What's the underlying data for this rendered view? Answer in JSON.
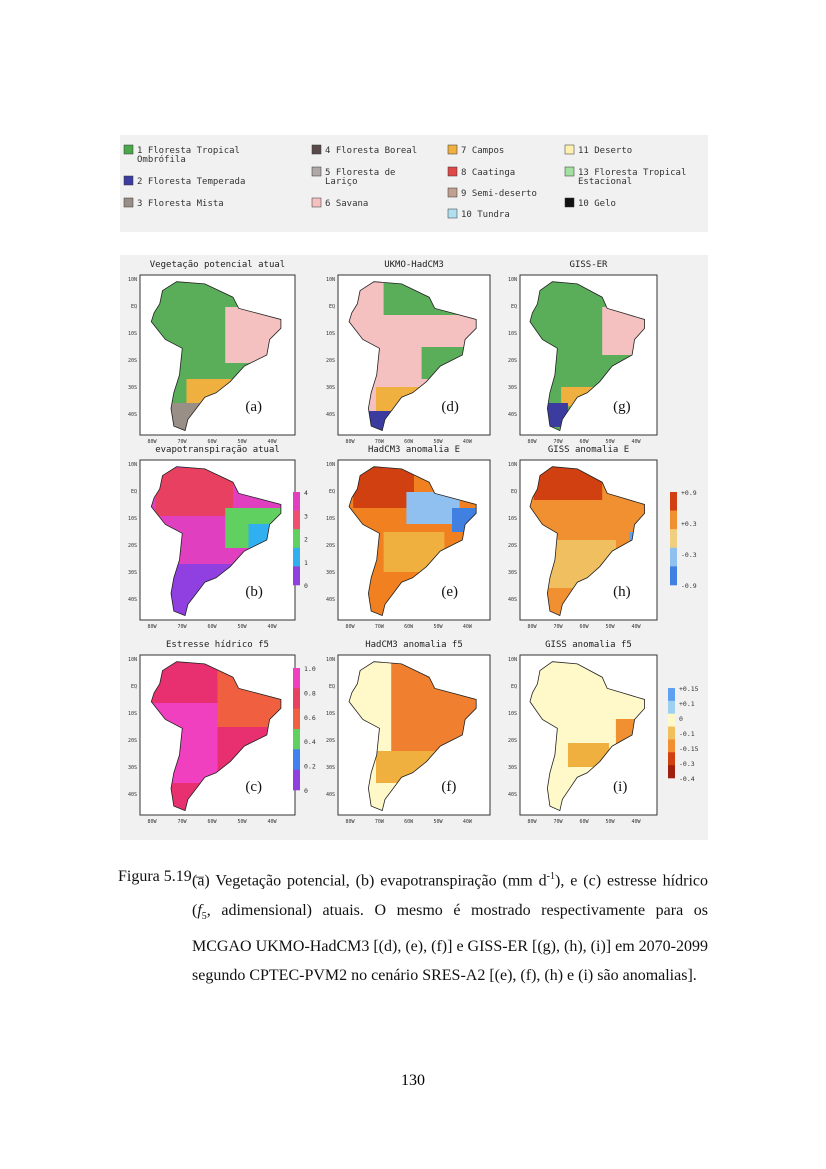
{
  "legend": {
    "items": [
      "1 Floresta Tropical Ombrófila",
      "2 Floresta Temperada",
      "3 Floresta Mista",
      "4 Floresta Boreal",
      "5 Floresta de Lariço",
      "6 Savana",
      "7 Campos",
      "8 Caatinga",
      "9 Semi-deserto",
      "10 Tundra",
      "11 Deserto",
      "13 Floresta Tropical Estacional",
      "10 Gelo"
    ]
  },
  "axes": {
    "lat": [
      "10N",
      "EQ",
      "10S",
      "20S",
      "30S",
      "40S"
    ],
    "lon": [
      "80W",
      "70W",
      "60W",
      "50W",
      "40W"
    ]
  },
  "panels": [
    {
      "title": "Vegetação potencial atual",
      "label": "(a)"
    },
    {
      "title": "UKMO-HadCM3",
      "label": "(d)"
    },
    {
      "title": "GISS-ER",
      "label": "(g)"
    },
    {
      "title": "evapotranspiração atual",
      "label": "(b)",
      "colorbar": [
        "4",
        "3",
        "2",
        "1",
        "0"
      ]
    },
    {
      "title": "HadCM3 anomalia E",
      "label": "(e)"
    },
    {
      "title": "GISS anomalia E",
      "label": "(h)",
      "colorbar": [
        "+0.9",
        "+0.3",
        "-0.3",
        "-0.9"
      ]
    },
    {
      "title": "Estresse hídrico f5",
      "label": "(c)",
      "colorbar": [
        "1.0",
        "0.8",
        "0.6",
        "0.4",
        "0.2",
        "0"
      ]
    },
    {
      "title": "HadCM3 anomalia f5",
      "label": "(f)"
    },
    {
      "title": "GISS anomalia f5",
      "label": "(i)",
      "colorbar": [
        "+0.15",
        "+0.1",
        "0",
        "-0.1",
        "-0.15",
        "-0.3",
        "-0.4"
      ]
    }
  ],
  "caption": {
    "number": "Figura 5.19 –",
    "text_1": "(a) Vegetação potencial, (b) evapotranspiração (mm d",
    "sup": "-1",
    "text_2": "), e (c) estresse hídrico (",
    "italic": "f",
    "sub": "5",
    "text_3": ", adimensional) atuais. O mesmo é mostrado respectivamente para os MCGAO UKMO-HadCM3 [(d), (e), (f)] e GISS-ER [(g), (h), (i)] em 2070-2099 segundo CPTEC-PVM2 no cenário SRES-A2 [(e), (f), (h) e (i) são anomalias]."
  },
  "page_number": "130"
}
